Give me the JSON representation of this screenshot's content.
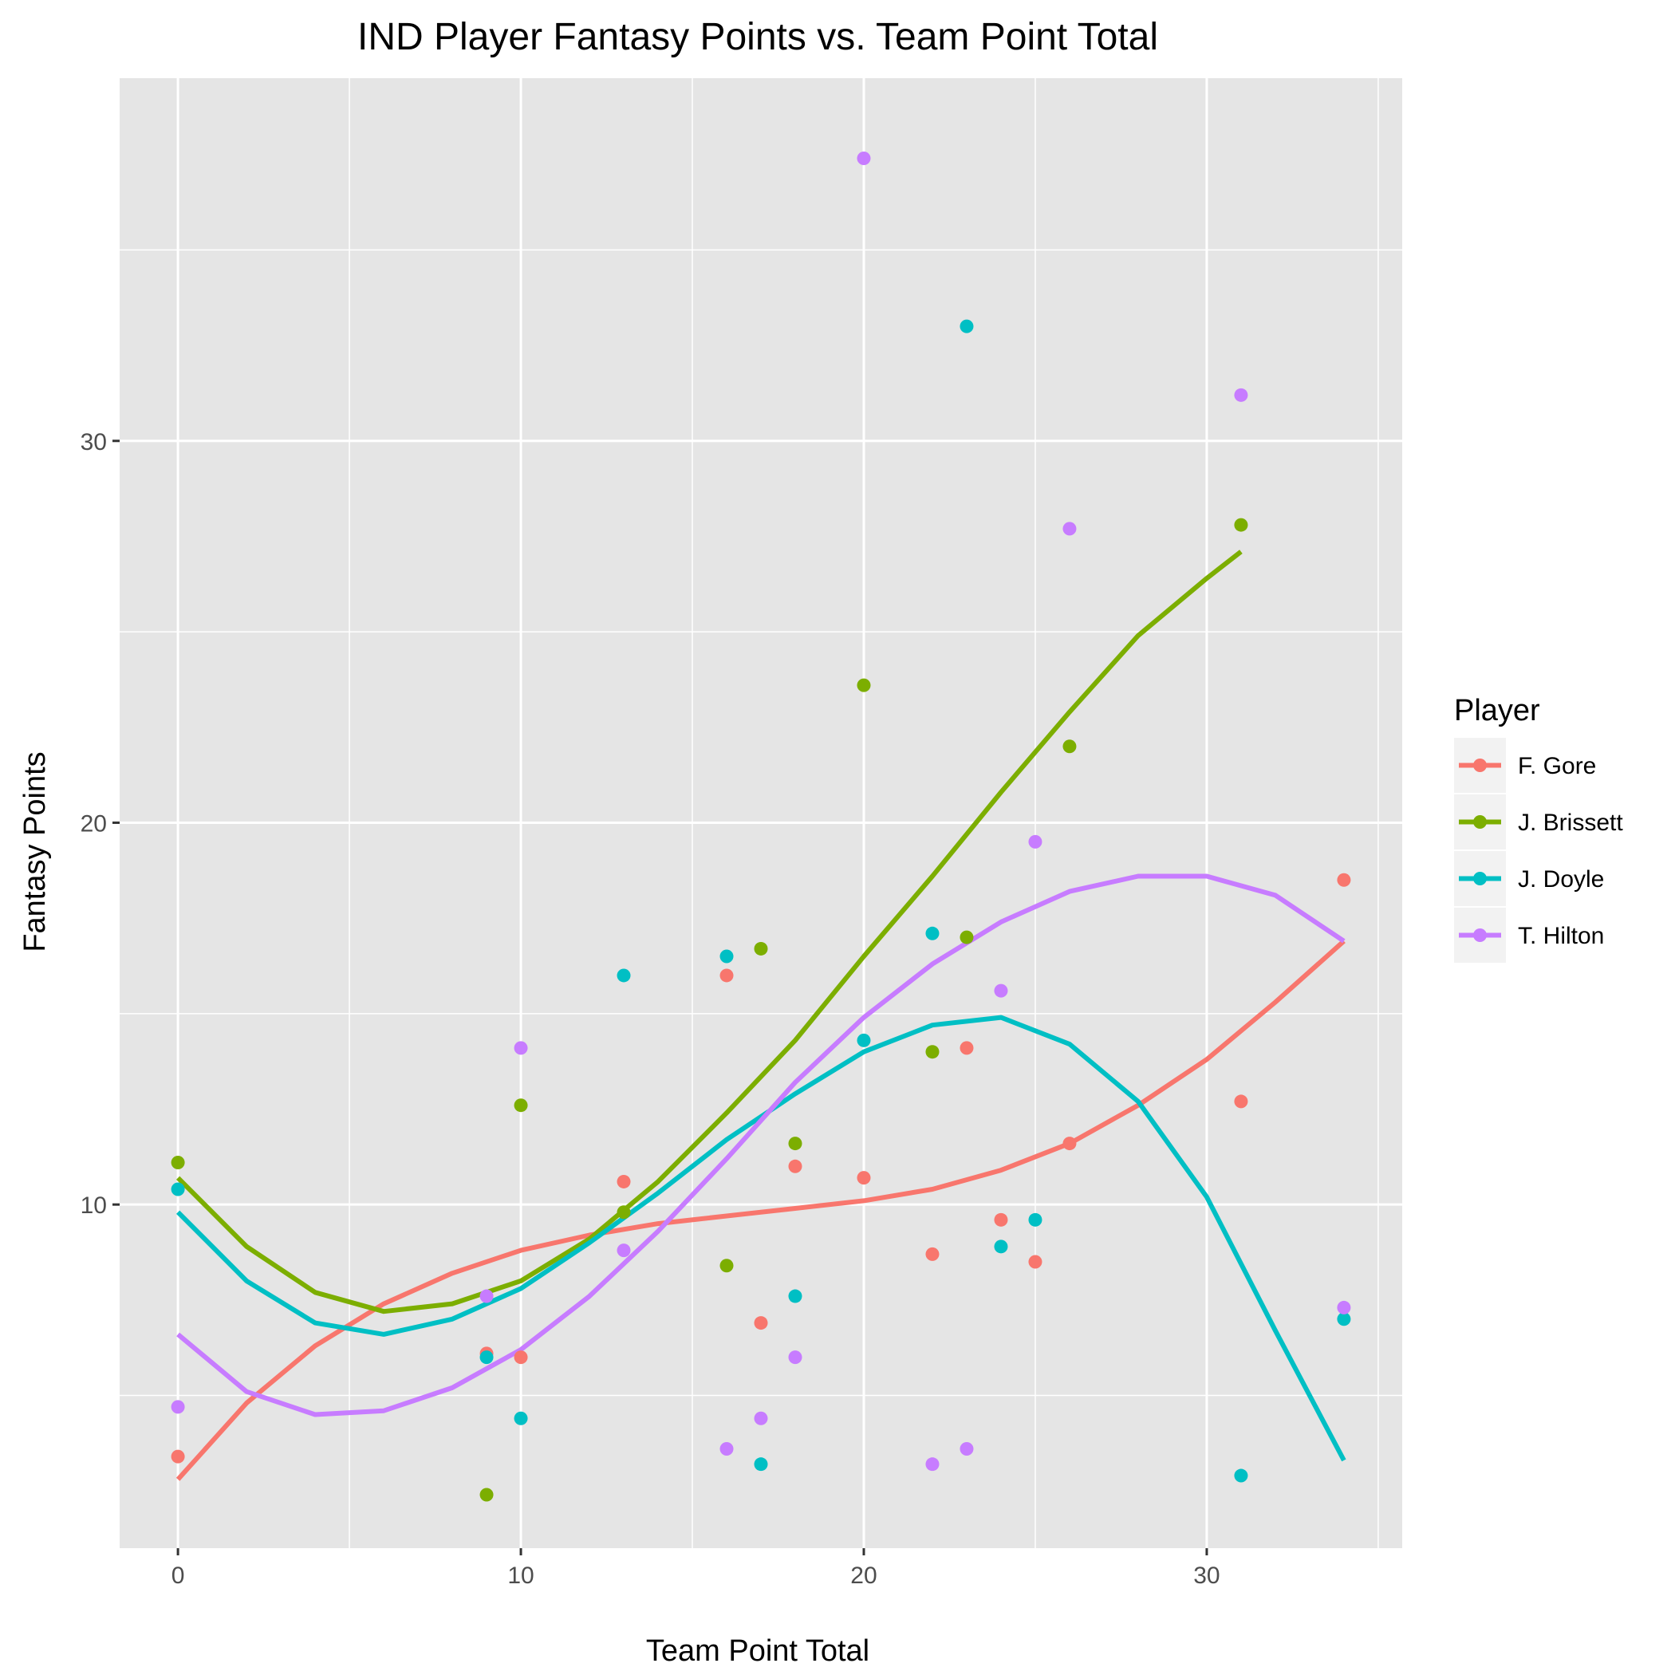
{
  "chart_data": {
    "type": "scatter",
    "title": "IND Player Fantasy Points vs. Team Point Total",
    "xlabel": "Team Point Total",
    "ylabel": "Fantasy Points",
    "xlim": [
      -1.7,
      35.7
    ],
    "ylim": [
      1.0,
      39.5
    ],
    "x_ticks": [
      0,
      10,
      20,
      30
    ],
    "y_ticks": [
      10,
      20,
      30
    ],
    "grid": true,
    "legend_title": "Player",
    "legend_position": "right",
    "series": [
      {
        "name": "F. Gore",
        "color": "#F8766D",
        "points": [
          [
            0,
            3.4
          ],
          [
            9,
            6.1
          ],
          [
            10,
            6.0
          ],
          [
            13,
            10.6
          ],
          [
            16,
            16.0
          ],
          [
            17,
            6.9
          ],
          [
            18,
            11.0
          ],
          [
            20,
            10.7
          ],
          [
            22,
            8.7
          ],
          [
            23,
            14.1
          ],
          [
            24,
            9.6
          ],
          [
            25,
            8.5
          ],
          [
            26,
            11.6
          ],
          [
            31,
            12.7
          ],
          [
            34,
            18.5
          ]
        ],
        "fit": [
          [
            0,
            2.8
          ],
          [
            2,
            4.8
          ],
          [
            4,
            6.3
          ],
          [
            6,
            7.4
          ],
          [
            8,
            8.2
          ],
          [
            10,
            8.8
          ],
          [
            12,
            9.2
          ],
          [
            14,
            9.5
          ],
          [
            16,
            9.7
          ],
          [
            18,
            9.9
          ],
          [
            20,
            10.1
          ],
          [
            22,
            10.4
          ],
          [
            24,
            10.9
          ],
          [
            26,
            11.6
          ],
          [
            28,
            12.6
          ],
          [
            30,
            13.8
          ],
          [
            32,
            15.3
          ],
          [
            34,
            16.9
          ]
        ]
      },
      {
        "name": "J. Brissett",
        "color": "#7CAE00",
        "points": [
          [
            0,
            11.1
          ],
          [
            9,
            2.4
          ],
          [
            10,
            12.6
          ],
          [
            13,
            9.8
          ],
          [
            16,
            8.4
          ],
          [
            17,
            16.7
          ],
          [
            18,
            11.6
          ],
          [
            20,
            23.6
          ],
          [
            22,
            14.0
          ],
          [
            23,
            17.0
          ],
          [
            26,
            22.0
          ],
          [
            31,
            27.8
          ]
        ],
        "fit": [
          [
            0,
            10.7
          ],
          [
            2,
            8.9
          ],
          [
            4,
            7.7
          ],
          [
            6,
            7.2
          ],
          [
            8,
            7.4
          ],
          [
            10,
            8.0
          ],
          [
            12,
            9.1
          ],
          [
            14,
            10.6
          ],
          [
            16,
            12.4
          ],
          [
            18,
            14.3
          ],
          [
            20,
            16.5
          ],
          [
            22,
            18.6
          ],
          [
            24,
            20.8
          ],
          [
            26,
            22.9
          ],
          [
            28,
            24.9
          ],
          [
            30,
            26.4
          ],
          [
            31,
            27.1
          ]
        ]
      },
      {
        "name": "J. Doyle",
        "color": "#00BFC4",
        "points": [
          [
            0,
            10.4
          ],
          [
            9,
            6.0
          ],
          [
            10,
            4.4
          ],
          [
            13,
            16.0
          ],
          [
            16,
            16.5
          ],
          [
            17,
            3.2
          ],
          [
            18,
            7.6
          ],
          [
            20,
            14.3
          ],
          [
            22,
            17.1
          ],
          [
            23,
            33.0
          ],
          [
            24,
            8.9
          ],
          [
            25,
            9.6
          ],
          [
            31,
            2.9
          ],
          [
            34,
            7.0
          ]
        ],
        "fit": [
          [
            0,
            9.8
          ],
          [
            2,
            8.0
          ],
          [
            4,
            6.9
          ],
          [
            6,
            6.6
          ],
          [
            8,
            7.0
          ],
          [
            10,
            7.8
          ],
          [
            12,
            9.0
          ],
          [
            14,
            10.3
          ],
          [
            16,
            11.7
          ],
          [
            18,
            12.9
          ],
          [
            20,
            14.0
          ],
          [
            22,
            14.7
          ],
          [
            24,
            14.9
          ],
          [
            26,
            14.2
          ],
          [
            28,
            12.7
          ],
          [
            30,
            10.2
          ],
          [
            32,
            6.7
          ],
          [
            34,
            3.3
          ]
        ]
      },
      {
        "name": "T. Hilton",
        "color": "#C77CFF",
        "points": [
          [
            0,
            4.7
          ],
          [
            9,
            7.6
          ],
          [
            10,
            14.1
          ],
          [
            13,
            8.8
          ],
          [
            16,
            3.6
          ],
          [
            17,
            4.4
          ],
          [
            18,
            6.0
          ],
          [
            20,
            37.4
          ],
          [
            22,
            3.2
          ],
          [
            23,
            3.6
          ],
          [
            24,
            15.6
          ],
          [
            25,
            19.5
          ],
          [
            26,
            27.7
          ],
          [
            31,
            31.2
          ],
          [
            34,
            7.3
          ]
        ],
        "fit": [
          [
            0,
            6.6
          ],
          [
            2,
            5.1
          ],
          [
            4,
            4.5
          ],
          [
            6,
            4.6
          ],
          [
            8,
            5.2
          ],
          [
            10,
            6.2
          ],
          [
            12,
            7.6
          ],
          [
            14,
            9.3
          ],
          [
            16,
            11.2
          ],
          [
            18,
            13.2
          ],
          [
            20,
            14.9
          ],
          [
            22,
            16.3
          ],
          [
            24,
            17.4
          ],
          [
            26,
            18.2
          ],
          [
            28,
            18.6
          ],
          [
            30,
            18.6
          ],
          [
            32,
            18.1
          ],
          [
            34,
            16.9
          ]
        ]
      }
    ]
  }
}
